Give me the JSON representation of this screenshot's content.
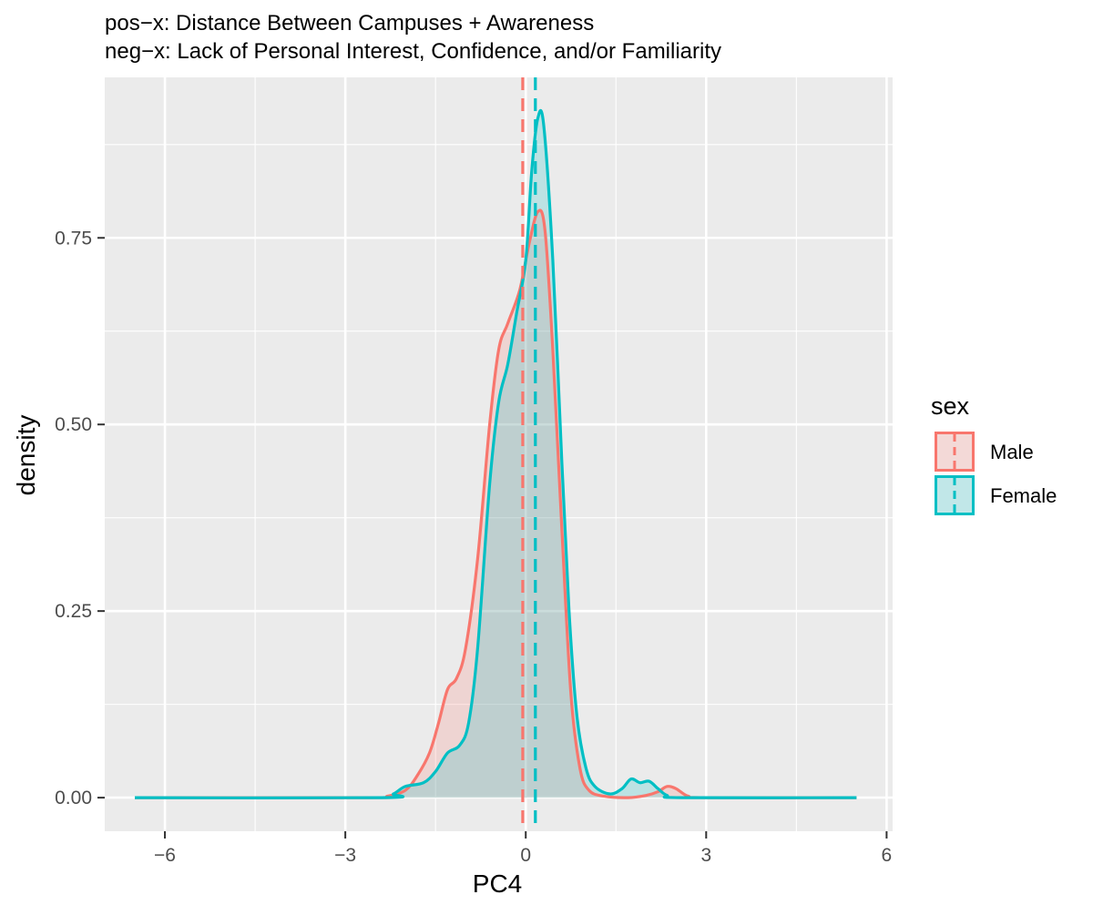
{
  "chart_data": {
    "type": "area",
    "title": "pos−x: Distance Between Campuses + Awareness",
    "subtitle": "neg−x: Lack of Personal Interest, Confidence, and/or Familiarity",
    "xlabel": "PC4",
    "ylabel": "density",
    "xlim": [
      -7,
      6.1
    ],
    "ylim": [
      -0.045,
      0.965
    ],
    "x_ticks": [
      -6,
      -3,
      0,
      3,
      6
    ],
    "x_tick_labels": [
      "−6",
      "−3",
      "0",
      "3",
      "6"
    ],
    "y_ticks": [
      0,
      0.25,
      0.5,
      0.75
    ],
    "y_tick_labels": [
      "0.00",
      "0.25",
      "0.50",
      "0.75"
    ],
    "grid": true,
    "legend": {
      "title": "sex",
      "position": "right",
      "entries": [
        "Male",
        "Female"
      ]
    },
    "series": [
      {
        "name": "Male",
        "color": "#F8766D",
        "fill": "#F8766D",
        "mean": -0.05,
        "points": [
          [
            -6.5,
            0
          ],
          [
            -2.6,
            0
          ],
          [
            -2.3,
            0.002
          ],
          [
            -2.0,
            0.01
          ],
          [
            -1.8,
            0.03
          ],
          [
            -1.6,
            0.06
          ],
          [
            -1.45,
            0.1
          ],
          [
            -1.3,
            0.145
          ],
          [
            -1.15,
            0.16
          ],
          [
            -1.0,
            0.2
          ],
          [
            -0.8,
            0.32
          ],
          [
            -0.6,
            0.5
          ],
          [
            -0.45,
            0.6
          ],
          [
            -0.3,
            0.635
          ],
          [
            -0.1,
            0.68
          ],
          [
            0.05,
            0.74
          ],
          [
            0.2,
            0.785
          ],
          [
            0.32,
            0.76
          ],
          [
            0.45,
            0.6
          ],
          [
            0.6,
            0.36
          ],
          [
            0.75,
            0.14
          ],
          [
            0.9,
            0.04
          ],
          [
            1.05,
            0.01
          ],
          [
            1.3,
            0.002
          ],
          [
            1.7,
            0.0
          ],
          [
            2.0,
            0.003
          ],
          [
            2.2,
            0.008
          ],
          [
            2.35,
            0.015
          ],
          [
            2.5,
            0.012
          ],
          [
            2.7,
            0.002
          ],
          [
            3.0,
            0
          ],
          [
            5.5,
            0
          ]
        ]
      },
      {
        "name": "Female",
        "color": "#00BFC4",
        "fill": "#00BFC4",
        "mean": 0.16,
        "points": [
          [
            -6.5,
            0
          ],
          [
            -2.4,
            0
          ],
          [
            -2.2,
            0.005
          ],
          [
            -2.0,
            0.015
          ],
          [
            -1.7,
            0.02
          ],
          [
            -1.5,
            0.035
          ],
          [
            -1.3,
            0.06
          ],
          [
            -1.1,
            0.07
          ],
          [
            -0.95,
            0.1
          ],
          [
            -0.8,
            0.2
          ],
          [
            -0.6,
            0.42
          ],
          [
            -0.45,
            0.53
          ],
          [
            -0.3,
            0.58
          ],
          [
            -0.15,
            0.65
          ],
          [
            0.0,
            0.72
          ],
          [
            0.1,
            0.84
          ],
          [
            0.2,
            0.91
          ],
          [
            0.3,
            0.9
          ],
          [
            0.45,
            0.72
          ],
          [
            0.6,
            0.45
          ],
          [
            0.72,
            0.25
          ],
          [
            0.85,
            0.11
          ],
          [
            1.0,
            0.04
          ],
          [
            1.15,
            0.015
          ],
          [
            1.4,
            0.005
          ],
          [
            1.6,
            0.012
          ],
          [
            1.75,
            0.025
          ],
          [
            1.9,
            0.02
          ],
          [
            2.05,
            0.022
          ],
          [
            2.2,
            0.012
          ],
          [
            2.35,
            0.003
          ],
          [
            2.6,
            0
          ],
          [
            5.5,
            0
          ]
        ]
      }
    ]
  },
  "panel_colors": {
    "panel": "#EBEBEB",
    "grid_major": "#FFFFFF",
    "axis_text": "#4D4D4D",
    "text": "#000000"
  }
}
